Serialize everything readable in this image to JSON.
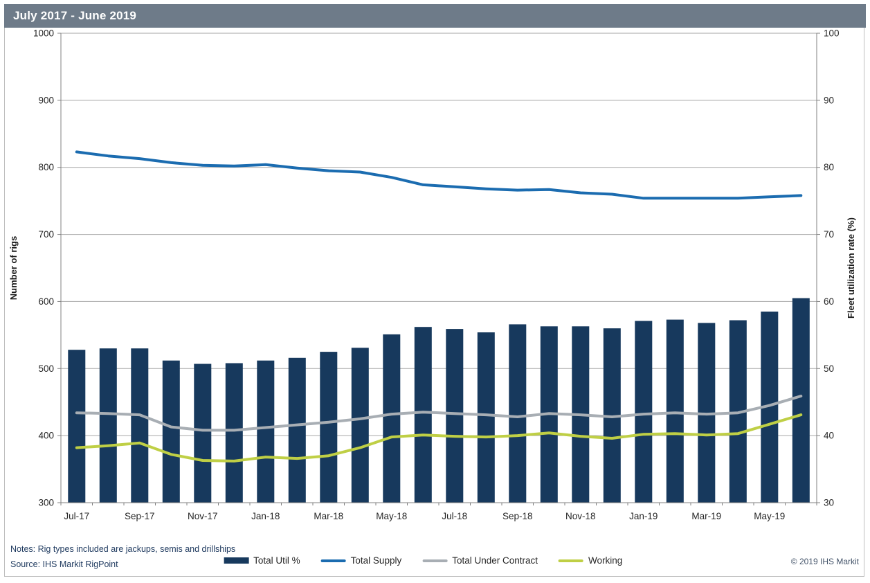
{
  "title": "July 2017 - June 2019",
  "colors": {
    "title_bar_bg": "#6E7B89",
    "title_text": "#FFFFFF",
    "bar": "#17395D",
    "supply_line": "#1B6CB0",
    "contract_line": "#A8AEB4",
    "working_line": "#BFCF45",
    "gridline": "#A6A6A6",
    "axis_line": "#808080",
    "tick_text": "#262626",
    "notes_text": "#1F3A5F",
    "copyright_text": "#44546A"
  },
  "chart_data": {
    "type": "combo",
    "title": "July 2017 - June 2019",
    "grid": true,
    "legend_position": "bottom",
    "categories": [
      "Jul-17",
      "Aug-17",
      "Sep-17",
      "Oct-17",
      "Nov-17",
      "Dec-17",
      "Jan-18",
      "Feb-18",
      "Mar-18",
      "Apr-18",
      "May-18",
      "Jun-18",
      "Jul-18",
      "Aug-18",
      "Sep-18",
      "Oct-18",
      "Nov-18",
      "Dec-18",
      "Jan-19",
      "Feb-19",
      "Mar-19",
      "Apr-19",
      "May-19",
      "Jun-19"
    ],
    "x_tick_labels": [
      "Jul-17",
      "Sep-17",
      "Nov-17",
      "Jan-18",
      "Mar-18",
      "May-18",
      "Jul-18",
      "Sep-18",
      "Nov-18",
      "Jan-19",
      "Mar-19",
      "May-19"
    ],
    "left_axis": {
      "label": "Number of rigs",
      "min": 300,
      "max": 1000,
      "ticks": [
        1000,
        900,
        800,
        700,
        600,
        500,
        400,
        300
      ]
    },
    "right_axis": {
      "label": "Fleet utilization rate (%)",
      "min": 30,
      "max": 100,
      "ticks": [
        100,
        90,
        80,
        70,
        60,
        50,
        40,
        30
      ]
    },
    "series": [
      {
        "name": "Total Util %",
        "type": "bar",
        "axis": "right",
        "color": "#17395D",
        "values": [
          52.8,
          53.0,
          53.0,
          51.2,
          50.7,
          50.8,
          51.2,
          51.6,
          52.5,
          53.1,
          55.1,
          56.2,
          55.9,
          55.4,
          56.6,
          56.3,
          56.3,
          56.0,
          57.1,
          57.3,
          56.8,
          57.2,
          58.5,
          60.5
        ]
      },
      {
        "name": "Total Supply",
        "type": "line",
        "axis": "left",
        "color": "#1B6CB0",
        "values": [
          823,
          817,
          813,
          807,
          803,
          802,
          804,
          799,
          795,
          793,
          785,
          774,
          771,
          768,
          766,
          767,
          762,
          760,
          754,
          754,
          754,
          754,
          756,
          758
        ]
      },
      {
        "name": "Total Under Contract",
        "type": "line",
        "axis": "left",
        "color": "#A8AEB4",
        "values": [
          434,
          433,
          431,
          413,
          408,
          408,
          412,
          416,
          420,
          425,
          432,
          435,
          433,
          431,
          428,
          433,
          431,
          428,
          432,
          434,
          432,
          434,
          445,
          459
        ]
      },
      {
        "name": "Working",
        "type": "line",
        "axis": "left",
        "color": "#BFCF45",
        "values": [
          382,
          385,
          389,
          372,
          363,
          362,
          368,
          366,
          370,
          382,
          398,
          401,
          399,
          398,
          400,
          404,
          399,
          396,
          402,
          403,
          401,
          403,
          417,
          431
        ]
      }
    ]
  },
  "footer": {
    "notes": "Notes: Rig types included are jackups, semis and drillships",
    "source": "Source: IHS Markit RigPoint",
    "copyright": "© 2019 IHS Markit"
  }
}
